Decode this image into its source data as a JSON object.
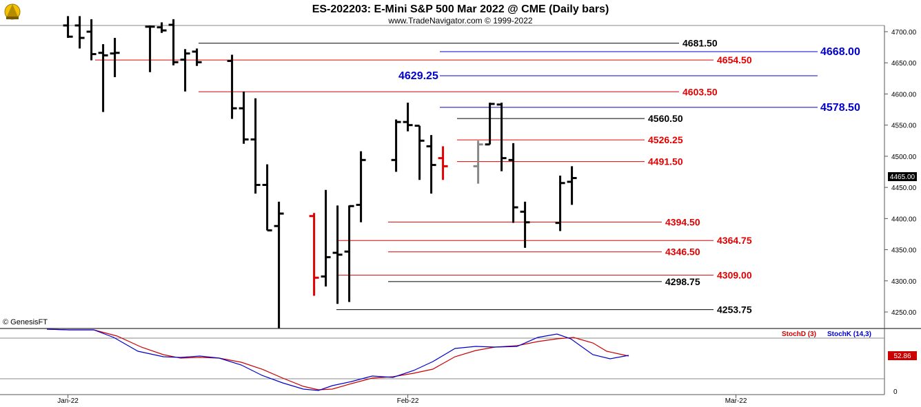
{
  "header": {
    "title": "ES-202203:  E-Mini S&P 500 Mar 2022 @ CME  (Daily bars)",
    "subtitle": "www.TradeNavigator.com © 1999-2022"
  },
  "copyright": "© GenesisFT",
  "colors": {
    "bar": "#000000",
    "bar_down": "#e00000",
    "bar_gray": "#888888",
    "red_level": "#e00000",
    "blue_level": "#0000cc",
    "black_level": "#000000",
    "stoch_d": "#cc0000",
    "stoch_k": "#0000cc"
  },
  "chart_data": [
    {
      "type": "bar",
      "subtype": "ohlc",
      "ylim": [
        4220,
        4720
      ],
      "y_ticks": [
        "4700.00",
        "4650.00",
        "4600.00",
        "4550.00",
        "4500.00",
        "4450.00",
        "4400.00",
        "4350.00",
        "4300.00",
        "4250.00"
      ],
      "x_ticks": [
        {
          "label": "Jan-22",
          "date": "2022-01-03"
        },
        {
          "label": "Feb-22",
          "date": "2022-02-01"
        },
        {
          "label": "Mar-22",
          "date": "2022-03-01"
        }
      ],
      "last_price": "4465.00",
      "bars": [
        {
          "date": "2022-01-03",
          "o": 4710,
          "h": 4725,
          "l": 4690,
          "c": 4692
        },
        {
          "date": "2022-01-04",
          "o": 4710,
          "h": 4725,
          "l": 4673,
          "c": 4690
        },
        {
          "date": "2022-01-05",
          "o": 4700,
          "h": 4720,
          "l": 4654,
          "c": 4664
        },
        {
          "date": "2022-01-06",
          "o": 4666,
          "h": 4680,
          "l": 4571,
          "c": 4662
        },
        {
          "date": "2022-01-07",
          "o": 4665,
          "h": 4690,
          "l": 4627,
          "c": 4666
        },
        {
          "date": "2022-01-10",
          "o": 4708,
          "h": 4710,
          "l": 4635,
          "c": 4708
        },
        {
          "date": "2022-01-11",
          "o": 4707,
          "h": 4715,
          "l": 4698,
          "c": 4702
        },
        {
          "date": "2022-01-12",
          "o": 4711,
          "h": 4720,
          "l": 4646,
          "c": 4651
        },
        {
          "date": "2022-01-13",
          "o": 4655,
          "h": 4672,
          "l": 4604,
          "c": 4665
        },
        {
          "date": "2022-01-14",
          "o": 4668,
          "h": 4673,
          "l": 4645,
          "c": 4651
        },
        {
          "date": "2022-01-17",
          "o": 4653,
          "h": 4663,
          "l": 4560,
          "c": 4577
        },
        {
          "date": "2022-01-18",
          "o": 4577,
          "h": 4604,
          "l": 4520,
          "c": 4527
        },
        {
          "date": "2022-01-19",
          "o": 4527,
          "h": 4593,
          "l": 4440,
          "c": 4454
        },
        {
          "date": "2022-01-20",
          "o": 4454,
          "h": 4487,
          "l": 4381,
          "c": 4381
        },
        {
          "date": "2022-01-21",
          "o": 4388,
          "h": 4427,
          "l": 4224,
          "c": 4408
        },
        {
          "date": "2022-01-24",
          "o": 4404,
          "h": 4409,
          "l": 4276,
          "c": 4305
        },
        {
          "date": "2022-01-25",
          "o": 4307,
          "h": 4446,
          "l": 4291,
          "c": 4338
        },
        {
          "date": "2022-01-26",
          "o": 4345,
          "h": 4421,
          "l": 4263,
          "c": 4342
        },
        {
          "date": "2022-01-27",
          "o": 4347,
          "h": 4421,
          "l": 4266,
          "c": 4420
        },
        {
          "date": "2022-01-28",
          "o": 4422,
          "h": 4508,
          "l": 4394,
          "c": 4494
        },
        {
          "date": "2022-01-31",
          "o": 4494,
          "h": 4559,
          "l": 4475,
          "c": 4555
        },
        {
          "date": "2022-02-01",
          "o": 4555,
          "h": 4586,
          "l": 4540,
          "c": 4550
        },
        {
          "date": "2022-02-02",
          "o": 4549,
          "h": 4549,
          "l": 4462,
          "c": 4525
        },
        {
          "date": "2022-02-03",
          "o": 4516,
          "h": 4534,
          "l": 4440,
          "c": 4486
        },
        {
          "date": "2022-02-04",
          "o": 4497,
          "h": 4516,
          "l": 4462,
          "c": 4484
        },
        {
          "date": "2022-02-07",
          "o": 4484,
          "h": 4525,
          "l": 4456,
          "c": 4519
        },
        {
          "date": "2022-02-08",
          "o": 4519,
          "h": 4586,
          "l": 4519,
          "c": 4584
        },
        {
          "date": "2022-02-09",
          "o": 4583,
          "h": 4586,
          "l": 4476,
          "c": 4497
        },
        {
          "date": "2022-02-10",
          "o": 4494,
          "h": 4521,
          "l": 4393,
          "c": 4418
        },
        {
          "date": "2022-02-11",
          "o": 4411,
          "h": 4427,
          "l": 4353,
          "c": 4394
        },
        {
          "date": "2022-02-14",
          "o": 4393,
          "h": 4469,
          "l": 4380,
          "c": 4457
        },
        {
          "date": "2022-02-15",
          "o": 4459,
          "h": 4484,
          "l": 4422,
          "c": 4465
        }
      ],
      "levels": [
        {
          "value": "4681.50",
          "color": "black"
        },
        {
          "value": "4668.00",
          "color": "blue"
        },
        {
          "value": "4654.50",
          "color": "red"
        },
        {
          "value": "4629.25",
          "color": "blue"
        },
        {
          "value": "4603.50",
          "color": "red"
        },
        {
          "value": "4578.50",
          "color": "blue"
        },
        {
          "value": "4560.50",
          "color": "black"
        },
        {
          "value": "4526.25",
          "color": "red"
        },
        {
          "value": "4491.50",
          "color": "red"
        },
        {
          "value": "4394.50",
          "color": "red"
        },
        {
          "value": "4364.75",
          "color": "red"
        },
        {
          "value": "4346.50",
          "color": "red"
        },
        {
          "value": "4309.00",
          "color": "red"
        },
        {
          "value": "4298.75",
          "color": "black"
        },
        {
          "value": "4253.75",
          "color": "black"
        }
      ]
    },
    {
      "type": "line",
      "ylim": [
        0,
        100
      ],
      "y_ticks": [
        "0"
      ],
      "last_value": "52.86",
      "series": [
        {
          "name": "StochD (3)",
          "color": "red"
        },
        {
          "name": "StochK (14,3)",
          "color": "blue"
        }
      ]
    }
  ]
}
